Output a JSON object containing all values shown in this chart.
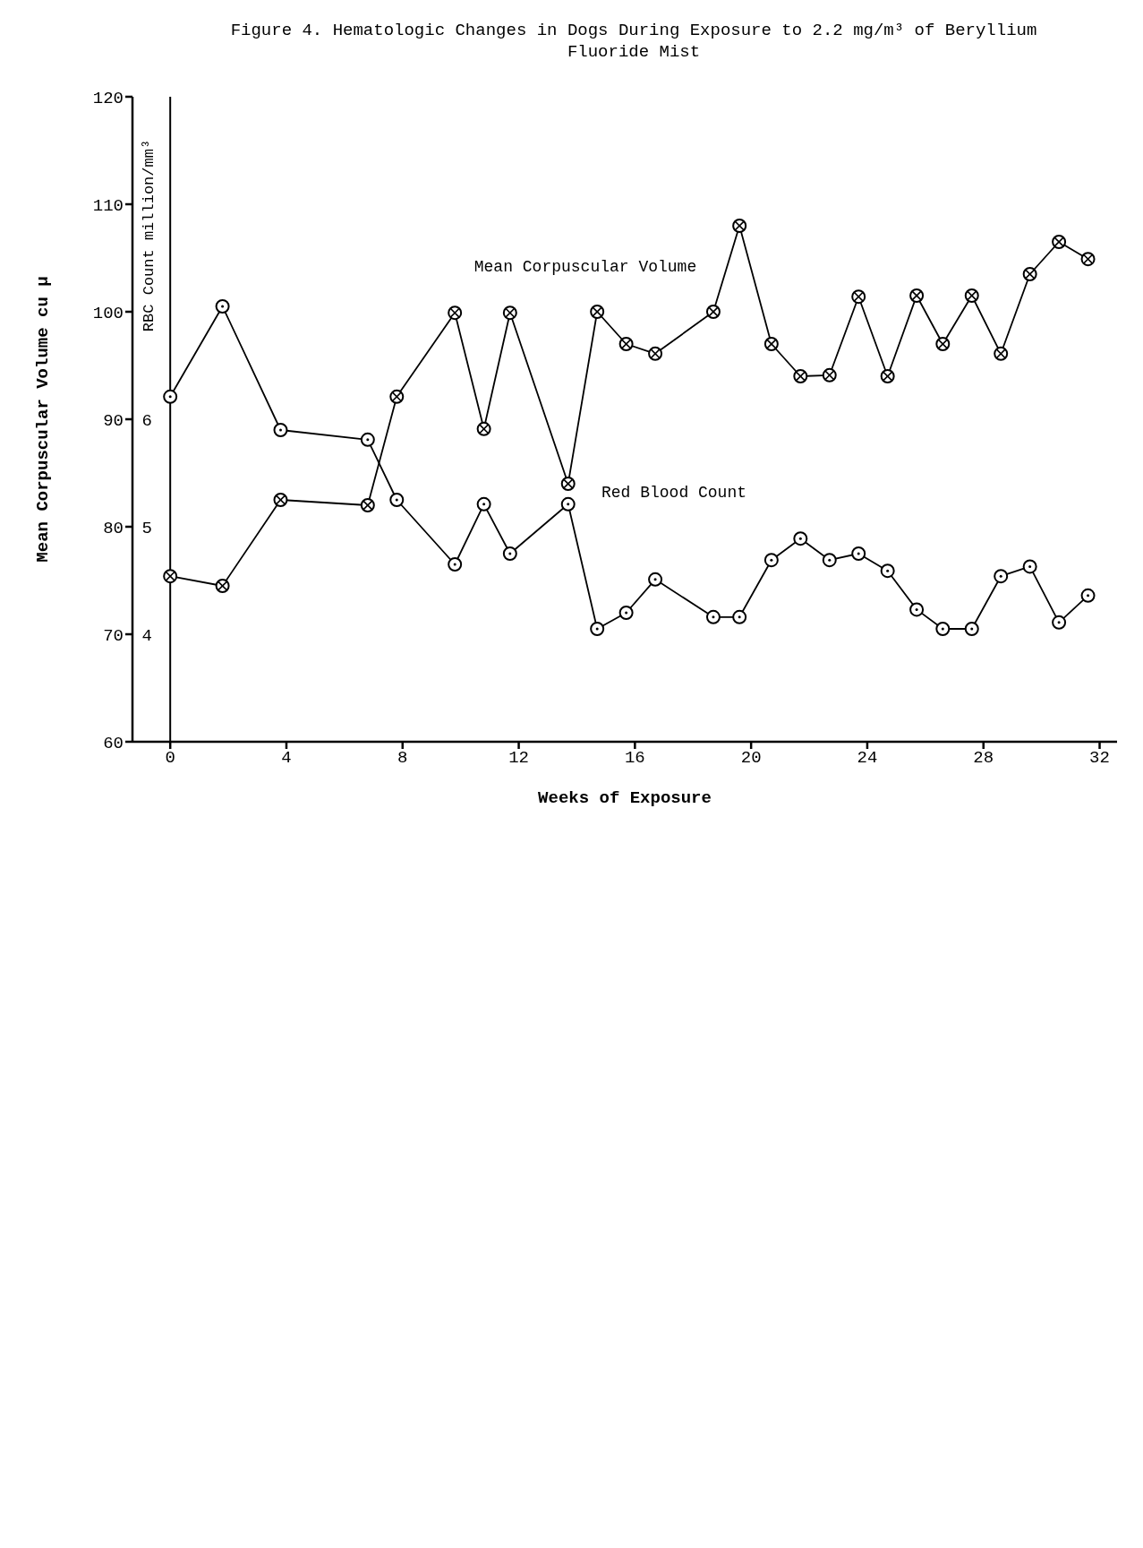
{
  "chart_data": {
    "type": "line",
    "title": "Figure 4.  Hematologic Changes in Dogs During Exposure to 2.2 mg/m³ of Beryllium Fluoride Mist",
    "xlabel": "Weeks of Exposure",
    "ylabel": "Mean Corpuscular Volume cu μ",
    "y2label": "RBC Count million/mm³",
    "x": [
      0,
      1.8,
      3.8,
      6.8,
      7.8,
      9.8,
      10.8,
      11.7,
      13.7,
      14.7,
      15.7,
      16.7,
      18.7,
      19.6,
      20.7,
      21.7,
      22.7,
      23.7,
      24.7,
      25.7,
      26.6,
      27.6,
      28.6,
      29.6,
      30.6,
      31.6
    ],
    "series": [
      {
        "name": "Mean Corpuscular Volume",
        "color": "#000000",
        "marker": "circle",
        "values": [
          75.4,
          74.5,
          82.5,
          82.0,
          92.1,
          99.9,
          89.1,
          99.9,
          84.0,
          100.0,
          97.0,
          96.1,
          100.0,
          108.0,
          97.0,
          94.0,
          94.1,
          101.4,
          94.0,
          101.5,
          97.0,
          101.5,
          96.1,
          103.5,
          106.5,
          104.9
        ]
      },
      {
        "name": "Red Blood Count",
        "color": "#000000",
        "marker": "circle",
        "axis": "y2",
        "values": [
          6.21,
          7.05,
          5.9,
          5.81,
          5.25,
          4.65,
          5.21,
          4.75,
          5.21,
          4.05,
          4.2,
          4.51,
          4.16,
          4.16,
          4.69,
          4.89,
          4.69,
          4.75,
          4.59,
          4.23,
          4.05,
          4.05,
          4.54,
          4.63,
          4.11,
          4.36
        ]
      }
    ],
    "xlim": [
      -1.3,
      32.6
    ],
    "xticks": [
      0,
      4,
      8,
      12,
      16,
      20,
      24,
      28,
      32
    ],
    "ylim": [
      60,
      120
    ],
    "yticks": [
      60,
      70,
      80,
      90,
      100,
      110,
      120
    ],
    "y2lim": [
      3,
      9
    ],
    "y2ticks": [
      4,
      5,
      6
    ],
    "ref_lines": [
      {
        "axis": "x",
        "value": 0,
        "color": "#000000"
      }
    ],
    "grid": false,
    "legend": false,
    "line_style": "solid"
  }
}
